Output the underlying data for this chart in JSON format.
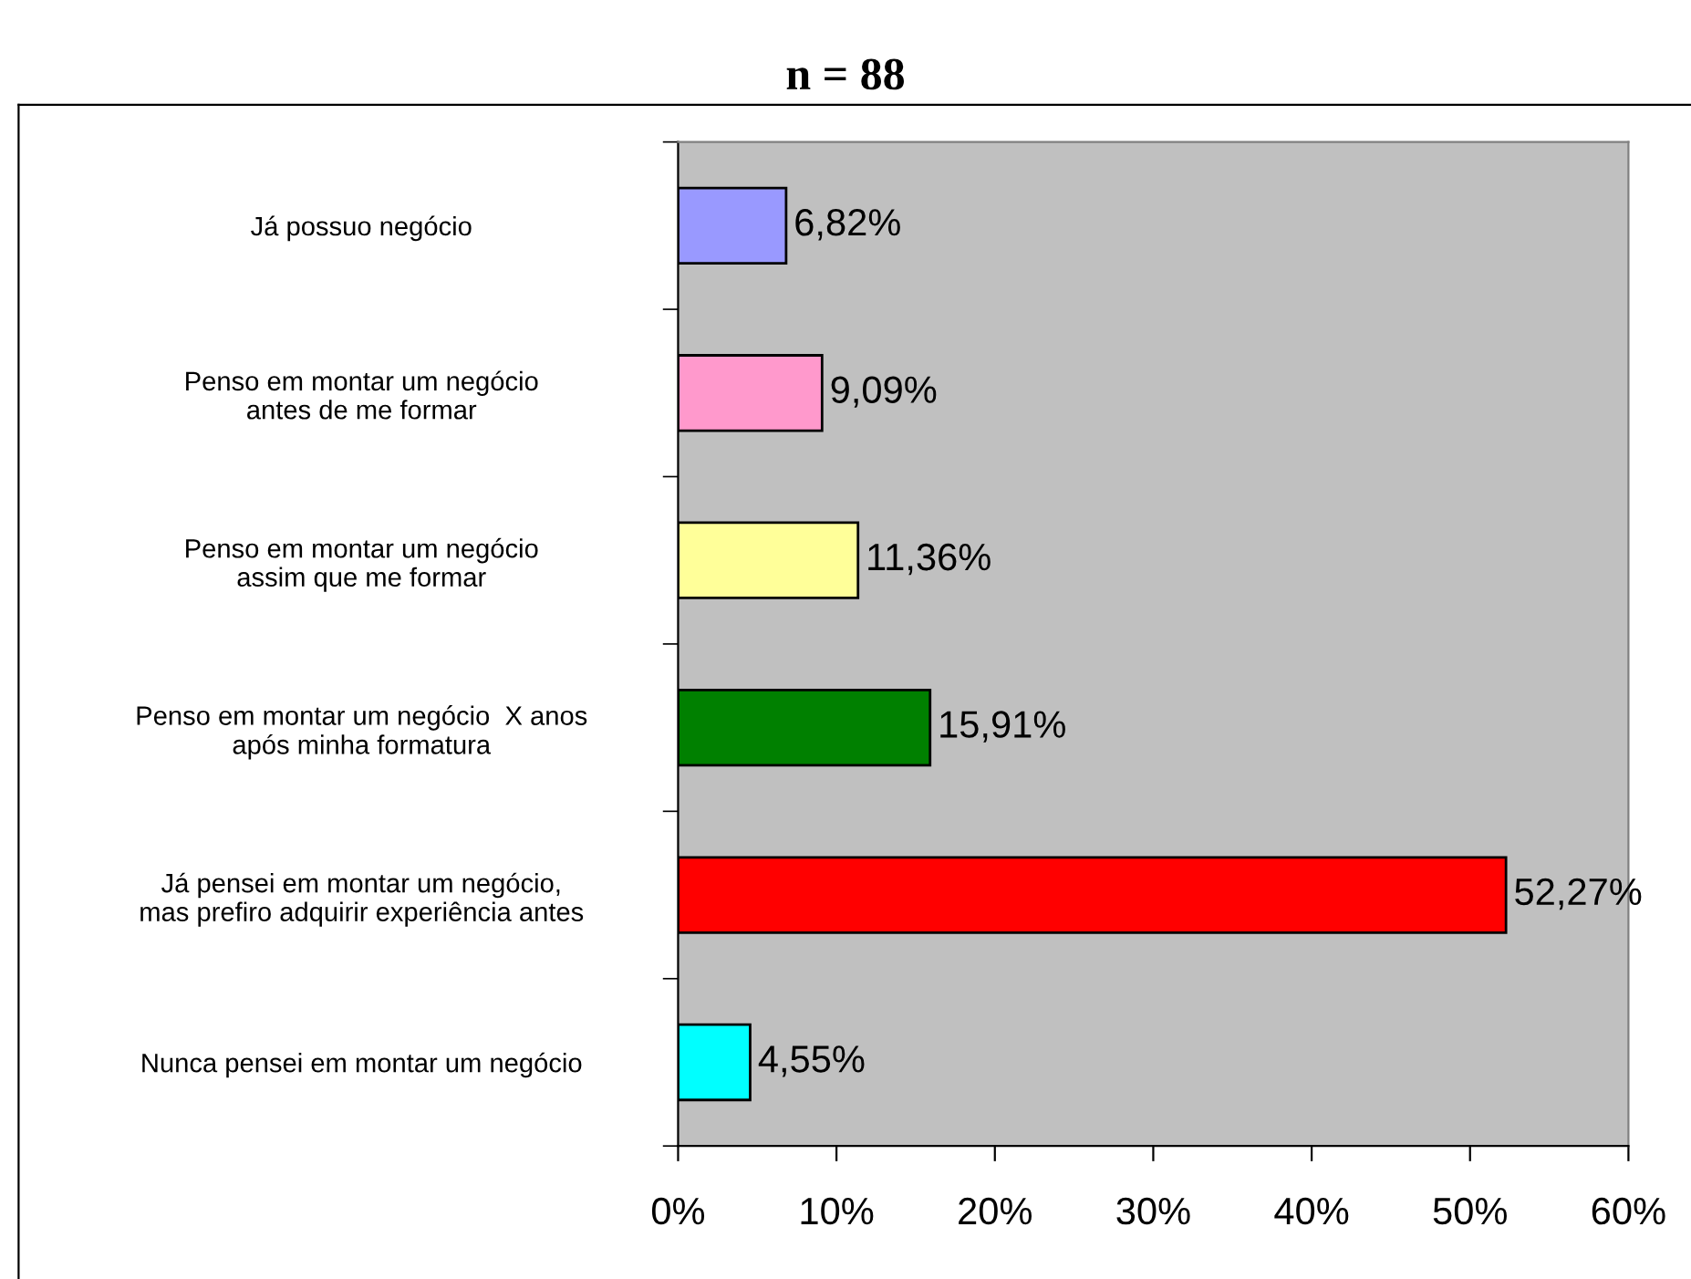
{
  "chart_data": {
    "type": "bar",
    "orientation": "horizontal",
    "title": "n = 88",
    "categories": [
      "Já possuo negócio",
      "Penso em montar um negócio\nantes de me formar",
      "Penso em montar um negócio\nassim que me formar",
      "Penso em montar um negócio  X anos\napós minha formatura",
      "Já pensei em montar um negócio,\nmas prefiro adquirir experiência antes",
      "Nunca pensei em montar um negócio"
    ],
    "values": [
      6.82,
      9.09,
      11.36,
      15.91,
      52.27,
      4.55
    ],
    "colors": [
      "#9999ff",
      "#ff99cc",
      "#ffff99",
      "#008000",
      "#ff0000",
      "#00ffff"
    ],
    "value_labels": [
      "6,82%",
      "9,09%",
      "11,36%",
      "15,91%",
      "52,27%",
      "4,55%"
    ],
    "xlim": [
      0,
      60
    ],
    "xticks": [
      {
        "value": 0,
        "label": "0%"
      },
      {
        "value": 10,
        "label": "10%"
      },
      {
        "value": 20,
        "label": "20%"
      },
      {
        "value": 30,
        "label": "30%"
      },
      {
        "value": 40,
        "label": "40%"
      },
      {
        "value": 50,
        "label": "50%"
      },
      {
        "value": 60,
        "label": "60%"
      }
    ],
    "grid": false,
    "legend": false
  }
}
